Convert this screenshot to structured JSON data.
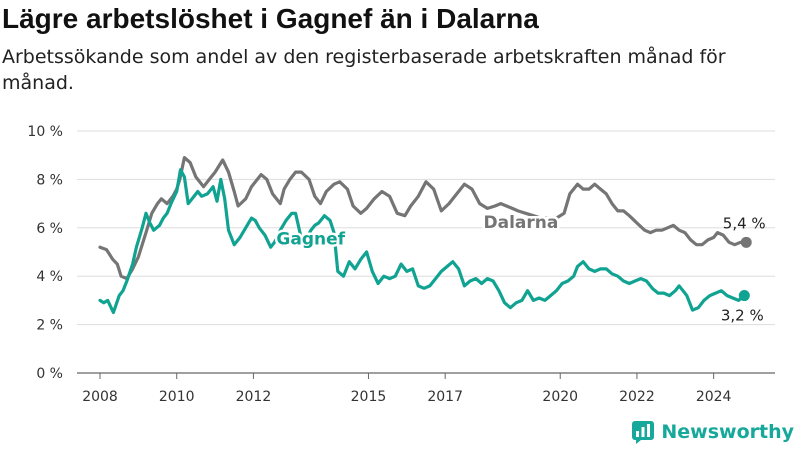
{
  "title": "Lägre arbetslöshet i Gagnef än i Dalarna",
  "subtitle": "Arbetssökande som andel av den registerbaserade arbetskraften månad för månad.",
  "brand": {
    "name": "Newsworthy",
    "icon": "newsworthy-logo-icon",
    "color": "#16a89a"
  },
  "chart_data": {
    "type": "line",
    "title": "Lägre arbetslöshet i Gagnef än i Dalarna",
    "subtitle": "Arbetssökande som andel av den registerbaserade arbetskraften månad för månad.",
    "xlabel": "",
    "ylabel": "",
    "xlim": [
      2007.4,
      2025.6
    ],
    "ylim": [
      0,
      10
    ],
    "y_ticks": [
      0,
      2,
      4,
      6,
      8,
      10
    ],
    "y_tick_labels": [
      "0 %",
      "2 %",
      "4 %",
      "6 %",
      "8 %",
      "10 %"
    ],
    "x_ticks": [
      2008,
      2010,
      2012,
      2015,
      2017,
      2020,
      2022,
      2024
    ],
    "x_tick_labels": [
      "2008",
      "2010",
      "2012",
      "2015",
      "2017",
      "2020",
      "2022",
      "2024"
    ],
    "grid": "horizontal",
    "legend": "none",
    "series": [
      {
        "name": "Dalarna",
        "color": "#757575",
        "end_label": "5,4 %",
        "x": [
          2008.0,
          2008.17,
          2008.33,
          2008.45,
          2008.55,
          2008.7,
          2008.85,
          2009.0,
          2009.1,
          2009.2,
          2009.35,
          2009.5,
          2009.6,
          2009.75,
          2009.9,
          2010.0,
          2010.08,
          2010.2,
          2010.35,
          2010.5,
          2010.7,
          2010.9,
          2011.0,
          2011.2,
          2011.35,
          2011.5,
          2011.6,
          2011.8,
          2011.95,
          2012.1,
          2012.2,
          2012.35,
          2012.5,
          2012.7,
          2012.8,
          2012.95,
          2013.1,
          2013.25,
          2013.45,
          2013.6,
          2013.75,
          2013.9,
          2014.1,
          2014.25,
          2014.45,
          2014.6,
          2014.8,
          2014.95,
          2015.15,
          2015.35,
          2015.55,
          2015.75,
          2015.95,
          2016.1,
          2016.3,
          2016.5,
          2016.7,
          2016.9,
          2017.1,
          2017.3,
          2017.5,
          2017.7,
          2017.9,
          2018.1,
          2018.3,
          2018.45,
          2018.6,
          2018.75,
          2018.9,
          2019.1,
          2019.3,
          2019.5,
          2019.7,
          2019.9,
          2020.1,
          2020.25,
          2020.45,
          2020.6,
          2020.75,
          2020.9,
          2021.05,
          2021.2,
          2021.35,
          2021.5,
          2021.65,
          2021.8,
          2022.0,
          2022.2,
          2022.35,
          2022.5,
          2022.65,
          2022.8,
          2022.95,
          2023.1,
          2023.25,
          2023.4,
          2023.55,
          2023.7,
          2023.85,
          2024.0,
          2024.1,
          2024.25,
          2024.4,
          2024.55,
          2024.7,
          2024.85
        ],
        "y": [
          5.2,
          5.1,
          4.7,
          4.5,
          4.0,
          3.9,
          4.3,
          4.8,
          5.3,
          5.8,
          6.6,
          7.0,
          7.2,
          7.0,
          7.3,
          7.6,
          8.0,
          8.9,
          8.7,
          8.1,
          7.7,
          8.1,
          8.3,
          8.8,
          8.3,
          7.5,
          6.9,
          7.2,
          7.7,
          8.0,
          8.2,
          8.0,
          7.4,
          7.0,
          7.6,
          8.0,
          8.3,
          8.3,
          8.0,
          7.3,
          7.0,
          7.5,
          7.8,
          7.9,
          7.6,
          6.9,
          6.6,
          6.8,
          7.2,
          7.5,
          7.3,
          6.6,
          6.5,
          6.9,
          7.3,
          7.9,
          7.6,
          6.7,
          7.0,
          7.4,
          7.8,
          7.6,
          7.0,
          6.8,
          6.9,
          7.0,
          6.9,
          6.8,
          6.7,
          6.6,
          6.5,
          6.4,
          6.4,
          6.4,
          6.6,
          7.4,
          7.8,
          7.6,
          7.6,
          7.8,
          7.6,
          7.4,
          7.0,
          6.7,
          6.7,
          6.5,
          6.2,
          5.9,
          5.8,
          5.9,
          5.9,
          6.0,
          6.1,
          5.9,
          5.8,
          5.5,
          5.3,
          5.3,
          5.5,
          5.6,
          5.8,
          5.7,
          5.4,
          5.3,
          5.4,
          5.4
        ]
      },
      {
        "name": "Gagnef",
        "color": "#11a392",
        "end_label": "3,2 %",
        "x": [
          2008.0,
          2008.1,
          2008.2,
          2008.35,
          2008.5,
          2008.6,
          2008.7,
          2008.85,
          2008.95,
          2009.1,
          2009.2,
          2009.3,
          2009.4,
          2009.55,
          2009.65,
          2009.75,
          2009.85,
          2010.0,
          2010.1,
          2010.2,
          2010.3,
          2010.4,
          2010.55,
          2010.65,
          2010.8,
          2010.95,
          2011.05,
          2011.15,
          2011.25,
          2011.35,
          2011.5,
          2011.65,
          2011.8,
          2011.95,
          2012.05,
          2012.15,
          2012.3,
          2012.45,
          2012.55,
          2012.7,
          2012.85,
          2013.0,
          2013.1,
          2013.2,
          2013.3,
          2013.4,
          2013.5,
          2013.6,
          2013.7,
          2013.85,
          2014.0,
          2014.1,
          2014.2,
          2014.35,
          2014.5,
          2014.65,
          2014.8,
          2014.95,
          2015.1,
          2015.25,
          2015.4,
          2015.55,
          2015.7,
          2015.85,
          2016.0,
          2016.15,
          2016.3,
          2016.45,
          2016.6,
          2016.75,
          2016.9,
          2017.05,
          2017.2,
          2017.35,
          2017.5,
          2017.65,
          2017.8,
          2017.95,
          2018.1,
          2018.25,
          2018.4,
          2018.55,
          2018.7,
          2018.85,
          2019.0,
          2019.15,
          2019.3,
          2019.45,
          2019.6,
          2019.75,
          2019.9,
          2020.05,
          2020.2,
          2020.35,
          2020.45,
          2020.6,
          2020.75,
          2020.9,
          2021.05,
          2021.2,
          2021.35,
          2021.5,
          2021.65,
          2021.8,
          2021.95,
          2022.1,
          2022.25,
          2022.4,
          2022.55,
          2022.7,
          2022.85,
          2023.0,
          2023.1,
          2023.2,
          2023.3,
          2023.45,
          2023.6,
          2023.75,
          2023.9,
          2024.05,
          2024.2,
          2024.35,
          2024.5,
          2024.65,
          2024.8
        ],
        "y": [
          3.0,
          2.9,
          3.0,
          2.5,
          3.2,
          3.4,
          3.8,
          4.5,
          5.2,
          6.0,
          6.6,
          6.2,
          5.9,
          6.1,
          6.4,
          6.6,
          7.0,
          7.5,
          8.4,
          8.1,
          7.0,
          7.2,
          7.5,
          7.3,
          7.4,
          7.7,
          7.1,
          8.0,
          7.2,
          5.9,
          5.3,
          5.6,
          6.0,
          6.4,
          6.3,
          6.0,
          5.7,
          5.2,
          5.4,
          5.9,
          6.3,
          6.6,
          6.6,
          5.9,
          5.2,
          5.6,
          5.9,
          6.1,
          6.2,
          6.5,
          6.3,
          5.8,
          4.2,
          4.0,
          4.6,
          4.3,
          4.7,
          5.0,
          4.2,
          3.7,
          4.0,
          3.9,
          4.0,
          4.5,
          4.2,
          4.3,
          3.6,
          3.5,
          3.6,
          3.9,
          4.2,
          4.4,
          4.6,
          4.3,
          3.6,
          3.8,
          3.9,
          3.7,
          3.9,
          3.8,
          3.4,
          2.9,
          2.7,
          2.9,
          3.0,
          3.4,
          3.0,
          3.1,
          3.0,
          3.2,
          3.4,
          3.7,
          3.8,
          4.0,
          4.4,
          4.6,
          4.3,
          4.2,
          4.3,
          4.3,
          4.1,
          4.0,
          3.8,
          3.7,
          3.8,
          3.9,
          3.8,
          3.5,
          3.3,
          3.3,
          3.2,
          3.4,
          3.6,
          3.4,
          3.2,
          2.6,
          2.7,
          3.0,
          3.2,
          3.3,
          3.4,
          3.2,
          3.1,
          3.0,
          3.2
        ]
      }
    ]
  }
}
